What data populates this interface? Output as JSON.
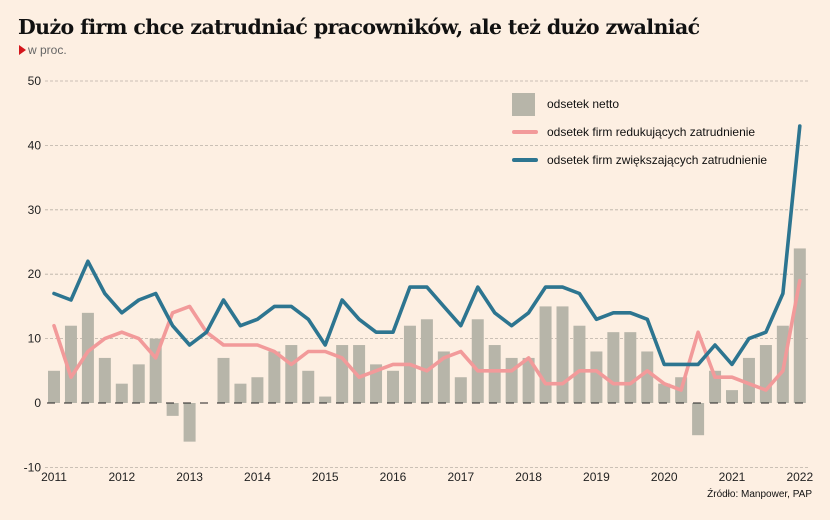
{
  "header": {
    "title": "Dużo firm chce zatrudniać pracowników, ale też dużo zwalniać",
    "subtitle": "w proc."
  },
  "source": "Źródło: Manpower, PAP",
  "colors": {
    "background": "#fdefe2",
    "bars": "#b7b5a9",
    "reducing": "#f29a9a",
    "increasing": "#2d7590",
    "accent": "#d4151b",
    "grid": "#b9b0a6"
  },
  "chart_data": {
    "type": "bar+line",
    "title": "Dużo firm chce zatrudniać pracowników, ale też dużo zwalniać",
    "ylabel": "w proc.",
    "xlabel": "",
    "ylim": [
      -10,
      50
    ],
    "yticks": [
      50,
      40,
      30,
      20,
      10,
      0,
      -10
    ],
    "xtick_labels": [
      "2011",
      "2012",
      "2013",
      "2014",
      "2015",
      "2016",
      "2017",
      "2018",
      "2019",
      "2020",
      "2021",
      "2022"
    ],
    "grid": true,
    "legend_position": "top-right",
    "x": [
      "2011Q1",
      "2011Q2",
      "2011Q3",
      "2011Q4",
      "2012Q1",
      "2012Q2",
      "2012Q3",
      "2012Q4",
      "2013Q1",
      "2013Q2",
      "2013Q3",
      "2013Q4",
      "2014Q1",
      "2014Q2",
      "2014Q3",
      "2014Q4",
      "2015Q1",
      "2015Q2",
      "2015Q3",
      "2015Q4",
      "2016Q1",
      "2016Q2",
      "2016Q3",
      "2016Q4",
      "2017Q1",
      "2017Q2",
      "2017Q3",
      "2017Q4",
      "2018Q1",
      "2018Q2",
      "2018Q3",
      "2018Q4",
      "2019Q1",
      "2019Q2",
      "2019Q3",
      "2019Q4",
      "2020Q1",
      "2020Q2",
      "2020Q3",
      "2020Q4",
      "2021Q1",
      "2021Q2",
      "2021Q3",
      "2021Q4",
      "2022Q1"
    ],
    "series": [
      {
        "name": "odsetek netto",
        "type": "bar",
        "values": [
          5,
          12,
          14,
          7,
          3,
          6,
          10,
          -2,
          -6,
          0,
          7,
          3,
          4,
          8,
          9,
          5,
          1,
          9,
          9,
          6,
          5,
          12,
          13,
          8,
          4,
          13,
          9,
          7,
          7,
          15,
          15,
          12,
          8,
          11,
          11,
          8,
          3,
          4,
          -5,
          5,
          2,
          7,
          9,
          12,
          24
        ]
      },
      {
        "name": "odsetek firm redukujących zatrudnienie",
        "type": "line",
        "values": [
          12,
          4,
          8,
          10,
          11,
          10,
          7,
          14,
          15,
          11,
          9,
          9,
          9,
          8,
          6,
          8,
          8,
          7,
          4,
          5,
          6,
          6,
          5,
          7,
          8,
          5,
          5,
          5,
          7,
          3,
          3,
          5,
          5,
          3,
          3,
          5,
          3,
          2,
          11,
          4,
          4,
          3,
          2,
          5,
          19
        ]
      },
      {
        "name": "odsetek firm zwiększających zatrudnienie",
        "type": "line",
        "values": [
          17,
          16,
          22,
          17,
          14,
          16,
          17,
          12,
          9,
          11,
          16,
          12,
          13,
          15,
          15,
          13,
          9,
          16,
          13,
          11,
          11,
          18,
          18,
          15,
          12,
          18,
          14,
          12,
          14,
          18,
          18,
          17,
          13,
          14,
          14,
          13,
          6,
          6,
          6,
          9,
          6,
          10,
          11,
          17,
          43
        ]
      }
    ]
  }
}
